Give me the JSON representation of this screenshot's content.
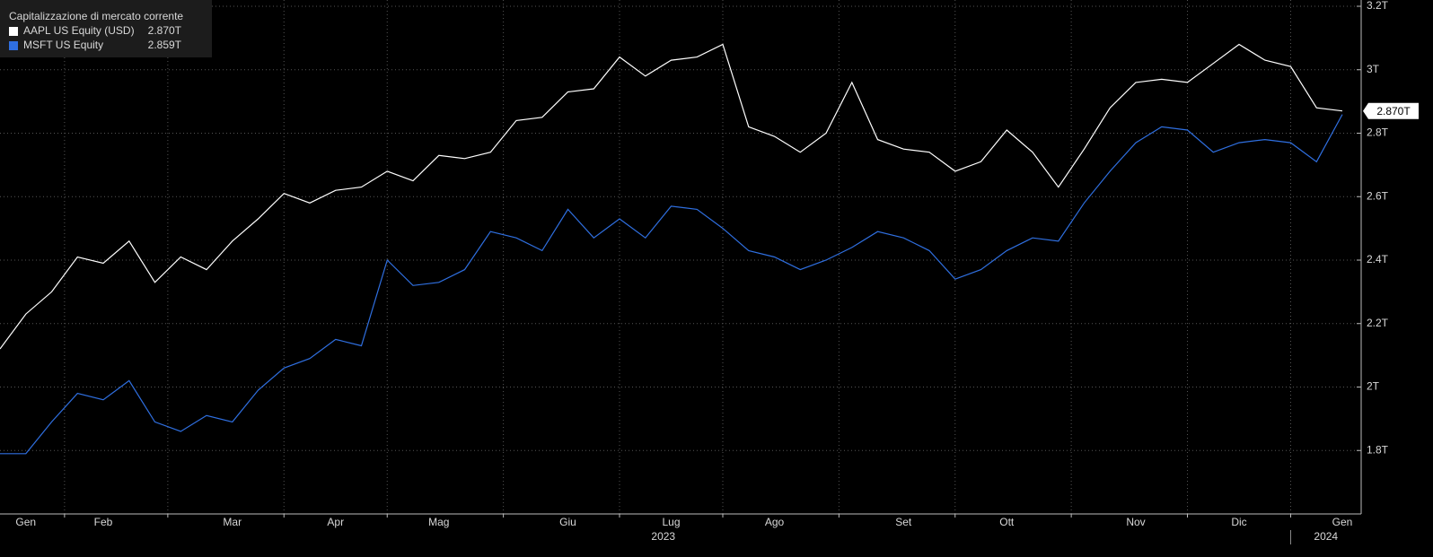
{
  "chart_data": {
    "type": "line",
    "title": "Capitalizzazione di mercato corrente",
    "categories": [
      null,
      "Gen",
      null,
      null,
      "Feb",
      null,
      null,
      null,
      null,
      "Mar",
      null,
      null,
      null,
      "Apr",
      null,
      null,
      null,
      "Mag",
      null,
      null,
      null,
      null,
      "Giu",
      null,
      null,
      null,
      "Lug",
      null,
      null,
      null,
      "Ago",
      null,
      null,
      null,
      null,
      "Set",
      null,
      null,
      null,
      "Ott",
      null,
      null,
      null,
      null,
      "Nov",
      null,
      null,
      null,
      "Dic",
      null,
      null,
      null,
      "Gen"
    ],
    "years": [
      "2023",
      "2024"
    ],
    "series": [
      {
        "name": "AAPL US Equity (USD)",
        "color": "#ffffff",
        "last_value_label": "2.870T",
        "flag": true,
        "values": [
          2.12,
          2.23,
          2.3,
          2.41,
          2.39,
          2.46,
          2.33,
          2.41,
          2.37,
          2.46,
          2.53,
          2.61,
          2.58,
          2.62,
          2.63,
          2.68,
          2.65,
          2.73,
          2.72,
          2.74,
          2.84,
          2.85,
          2.93,
          2.94,
          3.04,
          2.98,
          3.03,
          3.04,
          3.08,
          2.82,
          2.79,
          2.74,
          2.8,
          2.96,
          2.78,
          2.75,
          2.74,
          2.68,
          2.71,
          2.81,
          2.74,
          2.63,
          2.75,
          2.88,
          2.96,
          2.97,
          2.96,
          3.02,
          3.08,
          3.03,
          3.01,
          2.88,
          2.87
        ]
      },
      {
        "name": "MSFT US Equity",
        "color": "#2f6fe0",
        "last_value_label": "2.859T",
        "flag": false,
        "values": [
          1.79,
          1.79,
          1.89,
          1.98,
          1.96,
          2.02,
          1.89,
          1.86,
          1.91,
          1.89,
          1.99,
          2.06,
          2.09,
          2.15,
          2.13,
          2.4,
          2.32,
          2.33,
          2.37,
          2.49,
          2.47,
          2.43,
          2.56,
          2.47,
          2.53,
          2.47,
          2.57,
          2.56,
          2.5,
          2.43,
          2.41,
          2.37,
          2.4,
          2.44,
          2.49,
          2.47,
          2.43,
          2.34,
          2.37,
          2.43,
          2.47,
          2.46,
          2.58,
          2.68,
          2.77,
          2.82,
          2.81,
          2.74,
          2.77,
          2.78,
          2.77,
          2.71,
          2.859
        ]
      }
    ],
    "ylim": [
      1.6,
      3.2
    ],
    "yticks": [
      {
        "value": 1.8,
        "label": "1.8T"
      },
      {
        "value": 2,
        "label": "2T"
      },
      {
        "value": 2.2,
        "label": "2.2T"
      },
      {
        "value": 2.4,
        "label": "2.4T"
      },
      {
        "value": 2.6,
        "label": "2.6T"
      },
      {
        "value": 2.8,
        "label": "2.8T"
      },
      {
        "value": 3,
        "label": "3T"
      },
      {
        "value": 3.2,
        "label": "3.2T"
      }
    ],
    "grid": true,
    "legend": "upper left"
  }
}
